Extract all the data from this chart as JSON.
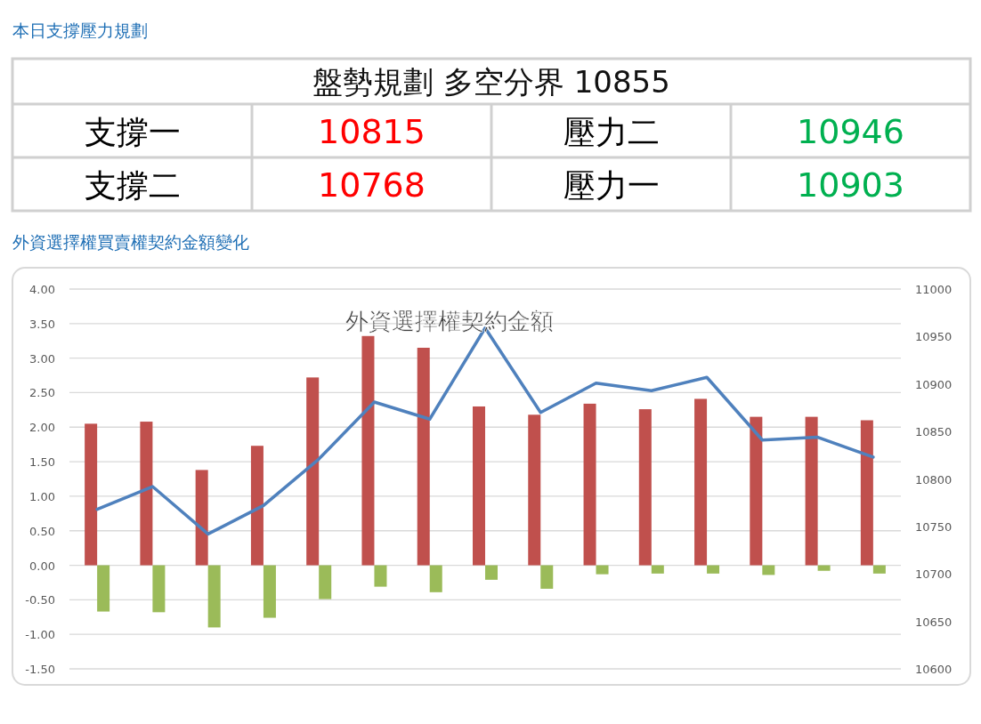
{
  "chart_data": [
    {
      "type": "other",
      "title": "本日支撐壓力規劃",
      "subtitle": "盤勢規劃 多空分界 10855",
      "annotations": [
        "支撐一",
        "10815",
        "壓力二",
        "10946",
        "支撐二",
        "10768",
        "壓力一",
        "10903"
      ],
      "colors": [
        "#000000",
        "#ff0000",
        "#000000",
        "#00b050",
        "#000000",
        "#ff0000",
        "#000000",
        "#00b050"
      ]
    },
    {
      "type": "bar",
      "title": "外資選擇權契約金額",
      "annotations": [
        "外資選擇權買賣權契約金額變化"
      ],
      "categories": [
        null,
        null,
        null,
        null,
        null,
        null,
        null,
        null,
        null,
        null,
        null,
        null,
        null,
        null,
        null
      ],
      "series": [
        {
          "color": "#c0504d",
          "values": [
            2.05,
            2.08,
            1.38,
            1.73,
            2.72,
            3.32,
            3.15,
            2.3,
            2.18,
            2.34,
            2.26,
            2.41,
            2.15,
            2.15,
            2.1
          ]
        },
        {
          "color": "#9bbb59",
          "values": [
            -0.67,
            -0.68,
            -0.9,
            -0.76,
            -0.49,
            -0.31,
            -0.39,
            -0.21,
            -0.34,
            -0.13,
            -0.12,
            -0.12,
            -0.14,
            -0.08,
            -0.12
          ]
        },
        {
          "type": "line",
          "axis": "y2",
          "color": "#4f81bd",
          "values": [
            10768,
            10792,
            10742,
            10772,
            10821,
            10881,
            10863,
            10959,
            10870,
            10901,
            10893,
            10907,
            10841,
            10844,
            10823
          ]
        }
      ],
      "ylim": [
        -1.5,
        4
      ],
      "yticks": [
        {
          "value": -1.5,
          "label": "-1.50"
        },
        {
          "value": -1,
          "label": "-1.00"
        },
        {
          "value": -0.5,
          "label": "-0.50"
        },
        {
          "value": 0,
          "label": "0.00"
        },
        {
          "value": 0.5,
          "label": "0.50"
        },
        {
          "value": 1,
          "label": "1.00"
        },
        {
          "value": 1.5,
          "label": "1.50"
        },
        {
          "value": 2,
          "label": "2.00"
        },
        {
          "value": 2.5,
          "label": "2.50"
        },
        {
          "value": 3,
          "label": "3.00"
        },
        {
          "value": 3.5,
          "label": "3.50"
        },
        {
          "value": 4,
          "label": "4.00"
        }
      ],
      "y2lim": [
        10600,
        11000
      ],
      "y2ticks": [
        10600,
        10650,
        10700,
        10750,
        10800,
        10850,
        10900,
        10950,
        11000
      ],
      "grid": "y",
      "tick_labels": "y",
      "marker": "none",
      "line_style": "solid"
    }
  ]
}
